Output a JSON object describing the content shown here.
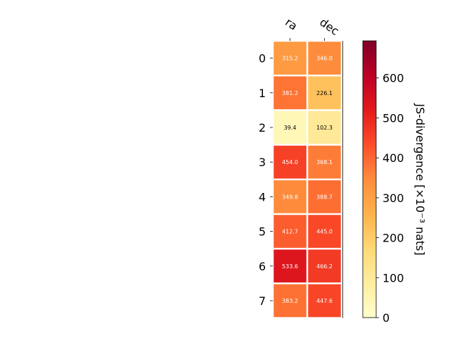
{
  "chart_data": {
    "type": "heatmap",
    "columns": [
      "ra",
      "dec"
    ],
    "rows": [
      "0",
      "1",
      "2",
      "3",
      "4",
      "5",
      "6",
      "7"
    ],
    "values": [
      [
        315.2,
        346.0
      ],
      [
        381.2,
        226.1
      ],
      [
        39.4,
        102.3
      ],
      [
        454.0,
        368.1
      ],
      [
        349.8,
        388.7
      ],
      [
        412.7,
        445.0
      ],
      [
        533.6,
        466.2
      ],
      [
        383.2,
        447.6
      ]
    ],
    "value_labels": [
      [
        "315.2",
        "346.0"
      ],
      [
        "381.2",
        "226.1"
      ],
      [
        "39.4",
        "102.3"
      ],
      [
        "454.0",
        "368.1"
      ],
      [
        "349.8",
        "388.7"
      ],
      [
        "412.7",
        "445.0"
      ],
      [
        "533.6",
        "466.2"
      ],
      [
        "383.2",
        "447.6"
      ]
    ],
    "colorbar": {
      "label": "JS-divergence [×10⁻³ nats]",
      "range": [
        0,
        693
      ],
      "ticks": [
        0,
        100,
        200,
        300,
        400,
        500,
        600
      ],
      "tick_labels": [
        "0",
        "100",
        "200",
        "300",
        "400",
        "500",
        "600"
      ],
      "colormap": "YlOrRd"
    }
  }
}
